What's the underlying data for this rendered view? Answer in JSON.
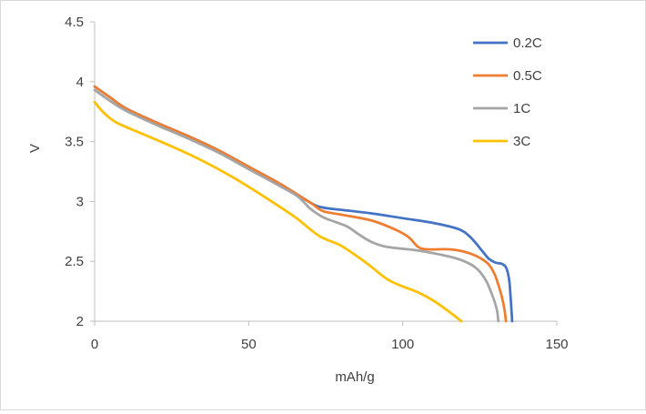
{
  "chart_data": {
    "type": "line",
    "title": "",
    "xlabel": "mAh/g",
    "ylabel": "V",
    "xlim": [
      0,
      150
    ],
    "ylim": [
      2,
      4.5
    ],
    "x_ticks": [
      0,
      50,
      100,
      150
    ],
    "y_ticks": [
      2,
      2.5,
      3,
      3.5,
      4,
      4.5
    ],
    "x_tick_labels": [
      "0",
      "50",
      "100",
      "150"
    ],
    "y_tick_labels": [
      "2",
      "2.5",
      "3",
      "3.5",
      "4",
      "4.5"
    ],
    "grid": false,
    "legend": "top-right",
    "series": [
      {
        "name": "0.2C",
        "color": "#4472c4",
        "points": [
          [
            0,
            3.96
          ],
          [
            5,
            3.87
          ],
          [
            10,
            3.78
          ],
          [
            20,
            3.66
          ],
          [
            30,
            3.55
          ],
          [
            40,
            3.43
          ],
          [
            50,
            3.29
          ],
          [
            60,
            3.15
          ],
          [
            70,
            2.99
          ],
          [
            74,
            2.95
          ],
          [
            80,
            2.93
          ],
          [
            90,
            2.9
          ],
          [
            100,
            2.86
          ],
          [
            110,
            2.82
          ],
          [
            118,
            2.77
          ],
          [
            122,
            2.7
          ],
          [
            126,
            2.58
          ],
          [
            128,
            2.52
          ],
          [
            130,
            2.49
          ],
          [
            132,
            2.48
          ],
          [
            133.5,
            2.45
          ],
          [
            134.5,
            2.35
          ],
          [
            135,
            2.2
          ],
          [
            135.5,
            2
          ]
        ]
      },
      {
        "name": "0.5C",
        "color": "#ed7d31",
        "points": [
          [
            0,
            3.96
          ],
          [
            5,
            3.87
          ],
          [
            10,
            3.78
          ],
          [
            20,
            3.66
          ],
          [
            30,
            3.55
          ],
          [
            40,
            3.43
          ],
          [
            50,
            3.29
          ],
          [
            60,
            3.15
          ],
          [
            70,
            2.99
          ],
          [
            74,
            2.92
          ],
          [
            80,
            2.89
          ],
          [
            90,
            2.84
          ],
          [
            98,
            2.76
          ],
          [
            102,
            2.7
          ],
          [
            105,
            2.62
          ],
          [
            108,
            2.6
          ],
          [
            115,
            2.6
          ],
          [
            120,
            2.58
          ],
          [
            125,
            2.53
          ],
          [
            128,
            2.47
          ],
          [
            130,
            2.38
          ],
          [
            132,
            2.22
          ],
          [
            133,
            2.1
          ],
          [
            133.5,
            2
          ]
        ]
      },
      {
        "name": "1C",
        "color": "#a5a5a5",
        "points": [
          [
            0,
            3.93
          ],
          [
            5,
            3.84
          ],
          [
            10,
            3.76
          ],
          [
            20,
            3.64
          ],
          [
            30,
            3.53
          ],
          [
            40,
            3.41
          ],
          [
            50,
            3.27
          ],
          [
            60,
            3.13
          ],
          [
            66,
            3.04
          ],
          [
            70,
            2.94
          ],
          [
            74,
            2.87
          ],
          [
            78,
            2.83
          ],
          [
            82,
            2.79
          ],
          [
            86,
            2.72
          ],
          [
            90,
            2.66
          ],
          [
            95,
            2.62
          ],
          [
            105,
            2.59
          ],
          [
            115,
            2.54
          ],
          [
            120,
            2.5
          ],
          [
            124,
            2.44
          ],
          [
            127,
            2.34
          ],
          [
            129,
            2.22
          ],
          [
            130.5,
            2.1
          ],
          [
            131,
            2
          ]
        ]
      },
      {
        "name": "3C",
        "color": "#ffc000",
        "points": [
          [
            0,
            3.83
          ],
          [
            3,
            3.74
          ],
          [
            7,
            3.66
          ],
          [
            15,
            3.57
          ],
          [
            25,
            3.46
          ],
          [
            35,
            3.34
          ],
          [
            45,
            3.2
          ],
          [
            55,
            3.04
          ],
          [
            65,
            2.87
          ],
          [
            73,
            2.71
          ],
          [
            80,
            2.63
          ],
          [
            88,
            2.49
          ],
          [
            95,
            2.35
          ],
          [
            100,
            2.29
          ],
          [
            105,
            2.24
          ],
          [
            110,
            2.17
          ],
          [
            115,
            2.08
          ],
          [
            119,
            2
          ]
        ]
      }
    ]
  }
}
